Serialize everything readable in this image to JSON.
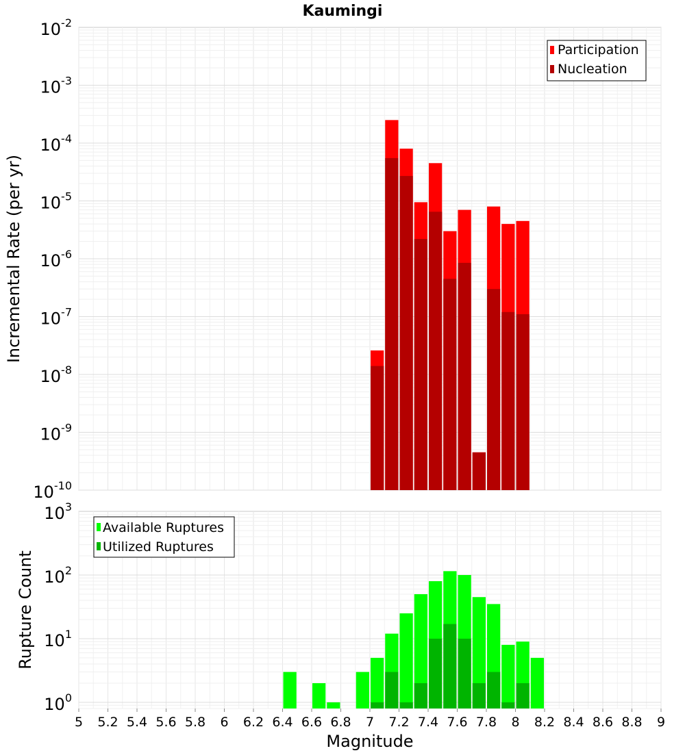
{
  "chart_data": [
    {
      "type": "bar",
      "title": "Kaumingi",
      "xlabel": "",
      "ylabel": "Incremental Rate (per yr)",
      "xlim": [
        5,
        9
      ],
      "ylim": [
        1e-10,
        0.01
      ],
      "yscale": "log",
      "y_tick_exponents": [
        "-10",
        "-9",
        "-8",
        "-7",
        "-6",
        "-5",
        "-4",
        "-3",
        "-2"
      ],
      "grid": true,
      "legend_position": "top-right",
      "bar_width": 0.1,
      "series": [
        {
          "name": "Participation",
          "color": "#ff0000",
          "x": [
            7.0,
            7.1,
            7.2,
            7.3,
            7.4,
            7.5,
            7.6,
            7.7,
            7.8,
            7.9,
            8.0
          ],
          "values": [
            2.6e-08,
            0.00025,
            8e-05,
            9.5e-06,
            4.5e-05,
            3e-06,
            7e-06,
            4.5e-10,
            8e-06,
            4e-06,
            4.5e-06
          ]
        },
        {
          "name": "Nucleation",
          "color": "#b40000",
          "x": [
            7.0,
            7.1,
            7.2,
            7.3,
            7.4,
            7.5,
            7.6,
            7.7,
            7.8,
            7.9,
            8.0
          ],
          "values": [
            1.4e-08,
            5.5e-05,
            2.7e-05,
            2.2e-06,
            6.5e-06,
            4.5e-07,
            8.5e-07,
            4.5e-10,
            3e-07,
            1.2e-07,
            1.1e-07
          ]
        }
      ]
    },
    {
      "type": "bar",
      "title": "",
      "xlabel": "Magnitude",
      "ylabel": "Rupture Count",
      "xlim": [
        5,
        9
      ],
      "ylim": [
        0.8,
        1000
      ],
      "yscale": "log",
      "y_tick_exponents": [
        "0",
        "1",
        "2",
        "3"
      ],
      "x_tick_labels": [
        "5",
        "5.2",
        "5.4",
        "5.6",
        "5.8",
        "6",
        "6.2",
        "6.4",
        "6.6",
        "6.8",
        "7",
        "7.2",
        "7.4",
        "7.6",
        "7.8",
        "8",
        "8.2",
        "8.4",
        "8.6",
        "8.8",
        "9"
      ],
      "grid": true,
      "legend_position": "top-left",
      "bar_width": 0.1,
      "series": [
        {
          "name": "Available Ruptures",
          "color": "#00ff00",
          "x": [
            6.4,
            6.6,
            6.7,
            6.9,
            7.0,
            7.1,
            7.2,
            7.3,
            7.4,
            7.5,
            7.6,
            7.7,
            7.8,
            7.9,
            8.0,
            8.1
          ],
          "values": [
            3,
            2,
            1,
            3,
            5,
            12,
            25,
            50,
            80,
            115,
            100,
            45,
            35,
            8,
            9,
            5
          ]
        },
        {
          "name": "Utilized Ruptures",
          "color": "#00b400",
          "x": [
            7.0,
            7.1,
            7.2,
            7.3,
            7.4,
            7.5,
            7.6,
            7.7,
            7.8,
            7.9,
            8.0
          ],
          "values": [
            1,
            3,
            1,
            2,
            10,
            17,
            10,
            2,
            3,
            1,
            2
          ]
        }
      ]
    }
  ]
}
